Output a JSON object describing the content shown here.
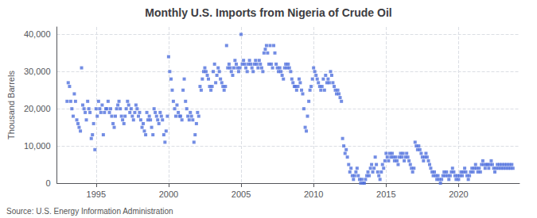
{
  "chart_data": {
    "type": "scatter",
    "title": "Monthly U.S. Imports from Nigeria of Crude Oil",
    "ylabel": "Thousand Barrels",
    "annotations": [
      "Source: U.S. Energy Information Administration"
    ],
    "marker": "square",
    "grid": true,
    "xlim": [
      1992.3,
      2024.2
    ],
    "xticks": [
      1995,
      2000,
      2005,
      2010,
      2015,
      2020
    ],
    "ylim": [
      0,
      42000
    ],
    "yticks": [
      0,
      {
        "value": 10000,
        "label": "10,000"
      },
      {
        "value": 20000,
        "label": "20,000"
      },
      {
        "value": 30000,
        "label": "30,000"
      },
      {
        "value": 40000,
        "label": "40,000"
      }
    ],
    "x": [
      1993.0,
      1993.08,
      1993.17,
      1993.25,
      1993.33,
      1993.42,
      1993.5,
      1993.58,
      1993.67,
      1993.75,
      1993.83,
      1993.92,
      1994.0,
      1994.08,
      1994.17,
      1994.25,
      1994.33,
      1994.42,
      1994.5,
      1994.58,
      1994.67,
      1994.75,
      1994.83,
      1994.92,
      1995.0,
      1995.08,
      1995.17,
      1995.25,
      1995.33,
      1995.42,
      1995.5,
      1995.58,
      1995.67,
      1995.75,
      1995.83,
      1995.92,
      1996.0,
      1996.08,
      1996.17,
      1996.25,
      1996.33,
      1996.42,
      1996.5,
      1996.58,
      1996.67,
      1996.75,
      1996.83,
      1996.92,
      1997.0,
      1997.08,
      1997.17,
      1997.25,
      1997.33,
      1997.42,
      1997.5,
      1997.58,
      1997.67,
      1997.75,
      1997.83,
      1997.92,
      1998.0,
      1998.08,
      1998.17,
      1998.25,
      1998.33,
      1998.42,
      1998.5,
      1998.58,
      1998.67,
      1998.75,
      1998.83,
      1998.92,
      1999.0,
      1999.08,
      1999.17,
      1999.25,
      1999.33,
      1999.42,
      1999.5,
      1999.58,
      1999.67,
      1999.75,
      1999.83,
      1999.92,
      2000.0,
      2000.08,
      2000.17,
      2000.25,
      2000.33,
      2000.42,
      2000.5,
      2000.58,
      2000.67,
      2000.75,
      2000.83,
      2000.92,
      2001.0,
      2001.08,
      2001.17,
      2001.25,
      2001.33,
      2001.42,
      2001.5,
      2001.58,
      2001.67,
      2001.75,
      2001.83,
      2001.92,
      2002.0,
      2002.08,
      2002.17,
      2002.25,
      2002.33,
      2002.42,
      2002.5,
      2002.58,
      2002.67,
      2002.75,
      2002.83,
      2002.92,
      2003.0,
      2003.08,
      2003.17,
      2003.25,
      2003.33,
      2003.42,
      2003.5,
      2003.58,
      2003.67,
      2003.75,
      2003.83,
      2003.92,
      2004.0,
      2004.08,
      2004.17,
      2004.25,
      2004.33,
      2004.42,
      2004.5,
      2004.58,
      2004.67,
      2004.75,
      2004.83,
      2004.92,
      2005.0,
      2005.08,
      2005.17,
      2005.25,
      2005.33,
      2005.42,
      2005.5,
      2005.58,
      2005.67,
      2005.75,
      2005.83,
      2005.92,
      2006.0,
      2006.08,
      2006.17,
      2006.25,
      2006.33,
      2006.42,
      2006.5,
      2006.58,
      2006.67,
      2006.75,
      2006.83,
      2006.92,
      2007.0,
      2007.08,
      2007.17,
      2007.25,
      2007.33,
      2007.42,
      2007.5,
      2007.58,
      2007.67,
      2007.75,
      2007.83,
      2007.92,
      2008.0,
      2008.08,
      2008.17,
      2008.25,
      2008.33,
      2008.42,
      2008.5,
      2008.58,
      2008.67,
      2008.75,
      2008.83,
      2008.92,
      2009.0,
      2009.08,
      2009.17,
      2009.25,
      2009.33,
      2009.42,
      2009.5,
      2009.58,
      2009.67,
      2009.75,
      2009.83,
      2009.92,
      2010.0,
      2010.08,
      2010.17,
      2010.25,
      2010.33,
      2010.42,
      2010.5,
      2010.58,
      2010.67,
      2010.75,
      2010.83,
      2010.92,
      2011.0,
      2011.08,
      2011.17,
      2011.25,
      2011.33,
      2011.42,
      2011.5,
      2011.58,
      2011.67,
      2011.75,
      2011.83,
      2011.92,
      2012.0,
      2012.08,
      2012.17,
      2012.25,
      2012.33,
      2012.42,
      2012.5,
      2012.58,
      2012.67,
      2012.75,
      2012.83,
      2012.92,
      2013.0,
      2013.08,
      2013.17,
      2013.25,
      2013.33,
      2013.42,
      2013.5,
      2013.58,
      2013.67,
      2013.75,
      2013.83,
      2013.92,
      2014.0,
      2014.08,
      2014.17,
      2014.25,
      2014.33,
      2014.42,
      2014.5,
      2014.58,
      2014.67,
      2014.75,
      2014.83,
      2014.92,
      2015.0,
      2015.08,
      2015.17,
      2015.25,
      2015.33,
      2015.42,
      2015.5,
      2015.58,
      2015.67,
      2015.75,
      2015.83,
      2015.92,
      2016.0,
      2016.08,
      2016.17,
      2016.25,
      2016.33,
      2016.42,
      2016.5,
      2016.58,
      2016.67,
      2016.75,
      2016.83,
      2016.92,
      2017.0,
      2017.08,
      2017.17,
      2017.25,
      2017.33,
      2017.42,
      2017.5,
      2017.58,
      2017.67,
      2017.75,
      2017.83,
      2017.92,
      2018.0,
      2018.08,
      2018.17,
      2018.25,
      2018.33,
      2018.42,
      2018.5,
      2018.58,
      2018.67,
      2018.75,
      2018.83,
      2018.92,
      2019.0,
      2019.08,
      2019.17,
      2019.25,
      2019.33,
      2019.42,
      2019.5,
      2019.58,
      2019.67,
      2019.75,
      2019.83,
      2019.92,
      2020.0,
      2020.08,
      2020.17,
      2020.25,
      2020.33,
      2020.42,
      2020.5,
      2020.58,
      2020.67,
      2020.75,
      2020.83,
      2020.92,
      2021.0,
      2021.08,
      2021.17,
      2021.25,
      2021.33,
      2021.42,
      2021.5,
      2021.58,
      2021.67,
      2021.75,
      2021.83,
      2021.92,
      2022.0,
      2022.08,
      2022.17,
      2022.25,
      2022.33,
      2022.42,
      2022.5,
      2022.58,
      2022.67,
      2022.75,
      2022.83,
      2022.92,
      2023.0,
      2023.08,
      2023.17,
      2023.25,
      2023.33,
      2023.42,
      2023.5,
      2023.58,
      2023.67,
      2023.75
    ],
    "values": [
      22000,
      27000,
      26000,
      22000,
      20000,
      18000,
      24000,
      22000,
      17000,
      16000,
      15000,
      14000,
      31000,
      21000,
      20000,
      19000,
      17000,
      22000,
      20000,
      19000,
      12000,
      13000,
      16000,
      9000,
      20000,
      18000,
      22000,
      20000,
      19000,
      21000,
      13000,
      19000,
      20000,
      20000,
      22000,
      19000,
      20000,
      18000,
      16000,
      15000,
      18000,
      20000,
      21000,
      22000,
      20000,
      18000,
      17000,
      16000,
      18000,
      20000,
      22000,
      21000,
      19000,
      20000,
      18000,
      17000,
      19000,
      21000,
      20000,
      18000,
      19000,
      17000,
      15000,
      16000,
      14000,
      13000,
      19000,
      17000,
      18000,
      17000,
      15000,
      13000,
      20000,
      19000,
      18000,
      17000,
      16000,
      19000,
      18000,
      17000,
      13000,
      11000,
      14000,
      18000,
      34000,
      30000,
      28000,
      25000,
      22000,
      20000,
      18000,
      21000,
      19000,
      18000,
      18000,
      17000,
      25000,
      28000,
      22000,
      20000,
      18000,
      17000,
      19000,
      18000,
      17000,
      11000,
      13000,
      16000,
      19000,
      18000,
      26000,
      25000,
      28000,
      30000,
      31000,
      30000,
      29000,
      28000,
      26000,
      25000,
      26000,
      30000,
      32000,
      27000,
      29000,
      31000,
      30000,
      28000,
      27000,
      26000,
      25000,
      26000,
      37000,
      31000,
      32000,
      31000,
      30000,
      29000,
      31000,
      33000,
      32000,
      31000,
      30000,
      31000,
      40000,
      32000,
      33000,
      32000,
      31000,
      30000,
      32000,
      33000,
      32000,
      31000,
      30000,
      32000,
      33000,
      32000,
      31000,
      33000,
      32000,
      31000,
      30000,
      35000,
      36000,
      37000,
      35000,
      32000,
      37000,
      32000,
      31000,
      37000,
      35000,
      32000,
      31000,
      30000,
      31000,
      30000,
      29000,
      28000,
      31000,
      32000,
      31000,
      32000,
      31000,
      30000,
      28000,
      27000,
      26000,
      26000,
      25000,
      26000,
      28000,
      27000,
      25000,
      24000,
      20000,
      15000,
      14000,
      18000,
      22000,
      25000,
      26000,
      28000,
      31000,
      30000,
      29000,
      28000,
      27000,
      26000,
      25000,
      26000,
      28000,
      25000,
      29000,
      27000,
      28000,
      27000,
      30000,
      29000,
      27000,
      26000,
      25000,
      24000,
      25000,
      24000,
      23000,
      22000,
      12000,
      10000,
      8000,
      9000,
      7000,
      5000,
      3000,
      4000,
      2000,
      1000,
      2000,
      3000,
      4000,
      2000,
      1000,
      0,
      1000,
      0,
      0,
      1000,
      2000,
      3000,
      2000,
      4000,
      5000,
      3000,
      4000,
      7000,
      5000,
      3000,
      2000,
      1000,
      3000,
      5000,
      4000,
      6000,
      8000,
      7000,
      6000,
      8000,
      7000,
      8000,
      7000,
      6000,
      7000,
      6000,
      5000,
      7000,
      8000,
      7000,
      8000,
      6000,
      7000,
      8000,
      7000,
      6000,
      5000,
      4000,
      3000,
      4000,
      11000,
      10000,
      9000,
      10000,
      9000,
      8000,
      7000,
      6000,
      7000,
      8000,
      7000,
      6000,
      5000,
      4000,
      3000,
      2000,
      3000,
      2000,
      1000,
      2000,
      1000,
      0,
      1000,
      2000,
      3000,
      2000,
      3000,
      2000,
      1000,
      2000,
      3000,
      4000,
      3000,
      2000,
      1000,
      2000,
      1000,
      2000,
      3000,
      2000,
      3000,
      4000,
      3000,
      2000,
      1000,
      2000,
      3000,
      4000,
      3000,
      4000,
      5000,
      4000,
      3000,
      4000,
      3000,
      5000,
      6000,
      5000,
      4000,
      5000,
      5000,
      4000,
      5000,
      6000,
      5000,
      4000,
      3000,
      4000,
      5000,
      4000,
      5000,
      4000,
      5000,
      4000,
      5000,
      4000,
      5000,
      4000,
      5000,
      4000,
      5000,
      4000
    ]
  }
}
